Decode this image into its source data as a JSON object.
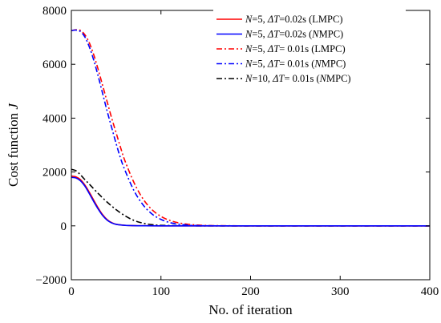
{
  "chart_data": {
    "type": "line",
    "xlabel": "No. of iteration",
    "ylabel": "Cost function J",
    "xlim": [
      0,
      400
    ],
    "ylim": [
      -2000,
      8000
    ],
    "xticks": [
      0,
      100,
      200,
      300,
      400
    ],
    "yticks": [
      -2000,
      0,
      2000,
      4000,
      6000,
      8000
    ],
    "grid": false,
    "legend_position": "top-right",
    "series": [
      {
        "name": "N=5, ΔT=0.02s (LMPC)",
        "color": "#ff0000",
        "dash": "solid",
        "x": [
          0,
          5,
          10,
          15,
          20,
          25,
          30,
          35,
          40,
          45,
          50,
          60,
          70,
          80,
          100,
          150,
          200,
          300,
          400
        ],
        "y": [
          1850,
          1820,
          1720,
          1520,
          1250,
          950,
          660,
          410,
          230,
          120,
          60,
          20,
          8,
          3,
          0,
          0,
          0,
          0,
          0
        ]
      },
      {
        "name": "N=5, ΔT=0.02s (NMPC)",
        "color": "#0000ff",
        "dash": "solid",
        "x": [
          0,
          5,
          10,
          15,
          20,
          25,
          30,
          35,
          40,
          45,
          50,
          60,
          70,
          80,
          100,
          150,
          200,
          300,
          400
        ],
        "y": [
          1800,
          1780,
          1680,
          1480,
          1200,
          900,
          620,
          380,
          210,
          110,
          55,
          18,
          7,
          3,
          0,
          0,
          0,
          0,
          0
        ]
      },
      {
        "name": "N=5, ΔT= 0.01s (LMPC)",
        "color": "#ff0000",
        "dash": "dashdot",
        "x": [
          0,
          5,
          10,
          15,
          20,
          25,
          30,
          35,
          40,
          45,
          50,
          55,
          60,
          70,
          80,
          90,
          100,
          110,
          120,
          130,
          140,
          150,
          160,
          180,
          200,
          250,
          300,
          400
        ],
        "y": [
          7250,
          7280,
          7260,
          7100,
          6800,
          6350,
          5800,
          5200,
          4600,
          4000,
          3450,
          2900,
          2400,
          1600,
          1000,
          600,
          350,
          200,
          110,
          60,
          30,
          15,
          8,
          2,
          0,
          0,
          0,
          0
        ]
      },
      {
        "name": "N=5, ΔT= 0.01s (NMPC)",
        "color": "#0000ff",
        "dash": "dashdot",
        "x": [
          0,
          5,
          10,
          15,
          20,
          25,
          30,
          35,
          40,
          45,
          50,
          55,
          60,
          70,
          80,
          90,
          100,
          110,
          120,
          130,
          140,
          150,
          160,
          180,
          200,
          250,
          300,
          400
        ],
        "y": [
          7250,
          7270,
          7220,
          7020,
          6650,
          6150,
          5550,
          4900,
          4250,
          3650,
          3050,
          2500,
          2050,
          1300,
          780,
          440,
          240,
          120,
          60,
          28,
          12,
          5,
          2,
          0,
          0,
          0,
          0,
          0
        ]
      },
      {
        "name": "N=10, ΔT= 0.01s (NMPC)",
        "color": "#000000",
        "dash": "dashdot",
        "x": [
          0,
          5,
          10,
          15,
          20,
          30,
          40,
          50,
          60,
          70,
          80,
          90,
          100,
          120,
          150,
          200,
          300,
          400
        ],
        "y": [
          2100,
          2050,
          1900,
          1720,
          1550,
          1200,
          880,
          600,
          370,
          200,
          100,
          45,
          20,
          5,
          0,
          0,
          0,
          0
        ]
      }
    ]
  }
}
